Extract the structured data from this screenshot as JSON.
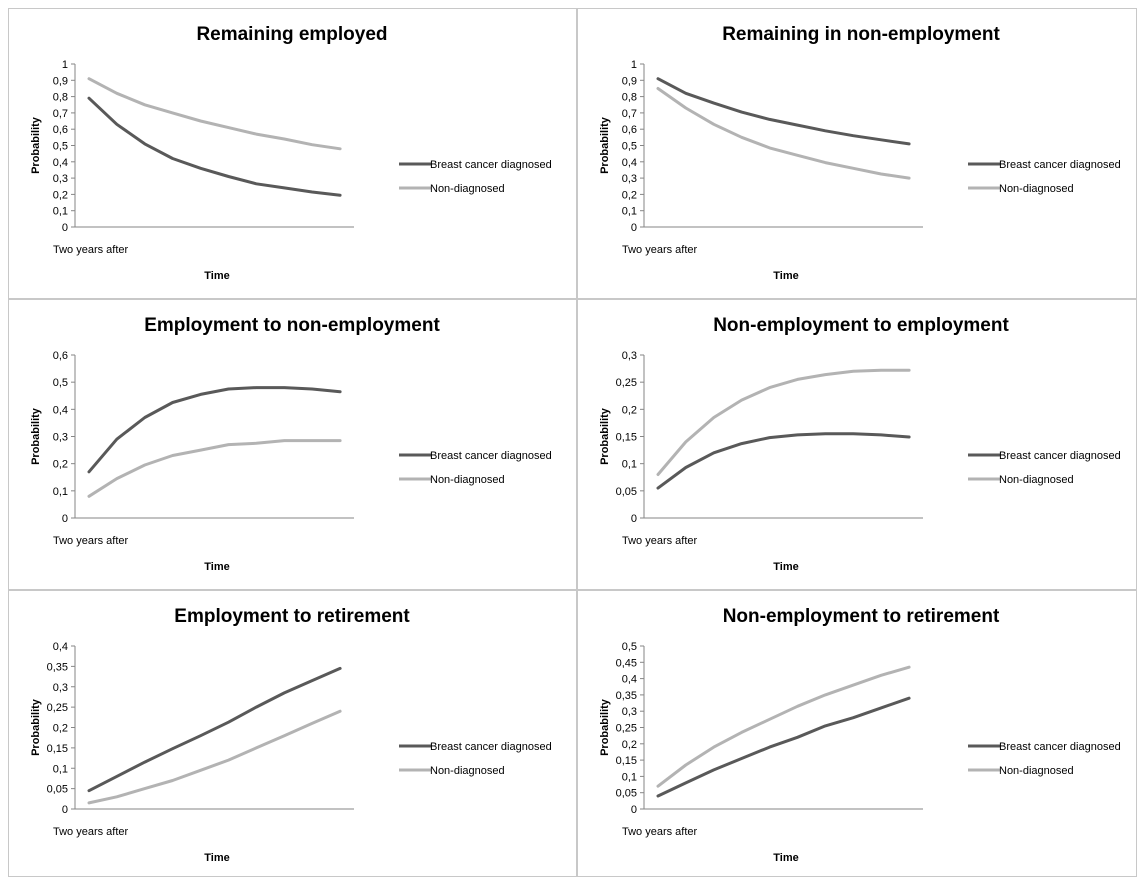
{
  "legend_position": "right",
  "colors": {
    "diagnosed": "#595959",
    "non_diagnosed": "#b3b3b3"
  },
  "chart_data": [
    {
      "type": "line",
      "title": "Remaining employed",
      "xlabel": "Time",
      "ylabel": "Probability",
      "x_tick_label": "Two years after",
      "ylim": [
        0,
        1
      ],
      "y_ticks": [
        "0",
        "0,1",
        "0,2",
        "0,3",
        "0,4",
        "0,5",
        "0,6",
        "0,7",
        "0,8",
        "0,9",
        "1"
      ],
      "x": [
        1,
        2,
        3,
        4,
        5,
        6,
        7,
        8,
        9,
        10
      ],
      "grid": false,
      "series": [
        {
          "name": "Breast cancer diagnosed",
          "values": [
            0.79,
            0.63,
            0.51,
            0.42,
            0.36,
            0.31,
            0.265,
            0.24,
            0.215,
            0.195
          ]
        },
        {
          "name": "Non-diagnosed",
          "values": [
            0.91,
            0.82,
            0.75,
            0.7,
            0.65,
            0.61,
            0.57,
            0.54,
            0.505,
            0.48
          ]
        }
      ]
    },
    {
      "type": "line",
      "title": "Remaining in non-employment",
      "xlabel": "Time",
      "ylabel": "Probability",
      "x_tick_label": "Two years after",
      "ylim": [
        0,
        1
      ],
      "y_ticks": [
        "0",
        "0,1",
        "0,2",
        "0,3",
        "0,4",
        "0,5",
        "0,6",
        "0,7",
        "0,8",
        "0,9",
        "1"
      ],
      "x": [
        1,
        2,
        3,
        4,
        5,
        6,
        7,
        8,
        9,
        10
      ],
      "grid": false,
      "series": [
        {
          "name": "Breast cancer diagnosed",
          "values": [
            0.91,
            0.82,
            0.76,
            0.705,
            0.66,
            0.625,
            0.59,
            0.56,
            0.535,
            0.51
          ]
        },
        {
          "name": "Non-diagnosed",
          "values": [
            0.85,
            0.73,
            0.63,
            0.55,
            0.485,
            0.44,
            0.395,
            0.36,
            0.325,
            0.3
          ]
        }
      ]
    },
    {
      "type": "line",
      "title": "Employment to non-employment",
      "xlabel": "Time",
      "ylabel": "Probability",
      "x_tick_label": "Two years after",
      "ylim": [
        0,
        0.6
      ],
      "y_ticks": [
        "0",
        "0,1",
        "0,2",
        "0,3",
        "0,4",
        "0,5",
        "0,6"
      ],
      "x": [
        1,
        2,
        3,
        4,
        5,
        6,
        7,
        8,
        9,
        10
      ],
      "grid": false,
      "series": [
        {
          "name": "Breast cancer diagnosed",
          "values": [
            0.17,
            0.29,
            0.37,
            0.425,
            0.455,
            0.475,
            0.48,
            0.48,
            0.475,
            0.465
          ]
        },
        {
          "name": "Non-diagnosed",
          "values": [
            0.08,
            0.145,
            0.195,
            0.23,
            0.25,
            0.27,
            0.275,
            0.285,
            0.285,
            0.285
          ]
        }
      ]
    },
    {
      "type": "line",
      "title": "Non-employment to employment",
      "xlabel": "Time",
      "ylabel": "Probability",
      "x_tick_label": "Two years after",
      "ylim": [
        0,
        0.3
      ],
      "y_ticks": [
        "0",
        "0,05",
        "0,1",
        "0,15",
        "0,2",
        "0,25",
        "0,3"
      ],
      "x": [
        1,
        2,
        3,
        4,
        5,
        6,
        7,
        8,
        9,
        10
      ],
      "grid": false,
      "series": [
        {
          "name": "Breast cancer diagnosed",
          "values": [
            0.055,
            0.093,
            0.12,
            0.137,
            0.148,
            0.153,
            0.155,
            0.155,
            0.153,
            0.149
          ]
        },
        {
          "name": "Non-diagnosed",
          "values": [
            0.08,
            0.14,
            0.185,
            0.217,
            0.24,
            0.255,
            0.264,
            0.27,
            0.272,
            0.272
          ]
        }
      ]
    },
    {
      "type": "line",
      "title": "Employment to retirement",
      "xlabel": "Time",
      "ylabel": "Probability",
      "x_tick_label": "Two years after",
      "ylim": [
        0,
        0.4
      ],
      "y_ticks": [
        "0",
        "0,05",
        "0,1",
        "0,15",
        "0,2",
        "0,25",
        "0,3",
        "0,35",
        "0,4"
      ],
      "x": [
        1,
        2,
        3,
        4,
        5,
        6,
        7,
        8,
        9,
        10
      ],
      "grid": false,
      "series": [
        {
          "name": "Breast cancer diagnosed",
          "values": [
            0.045,
            0.08,
            0.115,
            0.148,
            0.18,
            0.213,
            0.25,
            0.285,
            0.315,
            0.345
          ]
        },
        {
          "name": "Non-diagnosed",
          "values": [
            0.015,
            0.03,
            0.05,
            0.07,
            0.095,
            0.12,
            0.15,
            0.18,
            0.21,
            0.24
          ]
        }
      ]
    },
    {
      "type": "line",
      "title": "Non-employment to retirement",
      "xlabel": "Time",
      "ylabel": "Probability",
      "x_tick_label": "Two years after",
      "ylim": [
        0,
        0.5
      ],
      "y_ticks": [
        "0",
        "0,05",
        "0,1",
        "0,15",
        "0,2",
        "0,25",
        "0,3",
        "0,35",
        "0,4",
        "0,45",
        "0,5"
      ],
      "x": [
        1,
        2,
        3,
        4,
        5,
        6,
        7,
        8,
        9,
        10
      ],
      "grid": false,
      "series": [
        {
          "name": "Breast cancer diagnosed",
          "values": [
            0.04,
            0.08,
            0.12,
            0.155,
            0.19,
            0.22,
            0.255,
            0.28,
            0.31,
            0.34
          ]
        },
        {
          "name": "Non-diagnosed",
          "values": [
            0.07,
            0.135,
            0.19,
            0.235,
            0.275,
            0.315,
            0.35,
            0.38,
            0.41,
            0.435
          ]
        }
      ]
    }
  ]
}
